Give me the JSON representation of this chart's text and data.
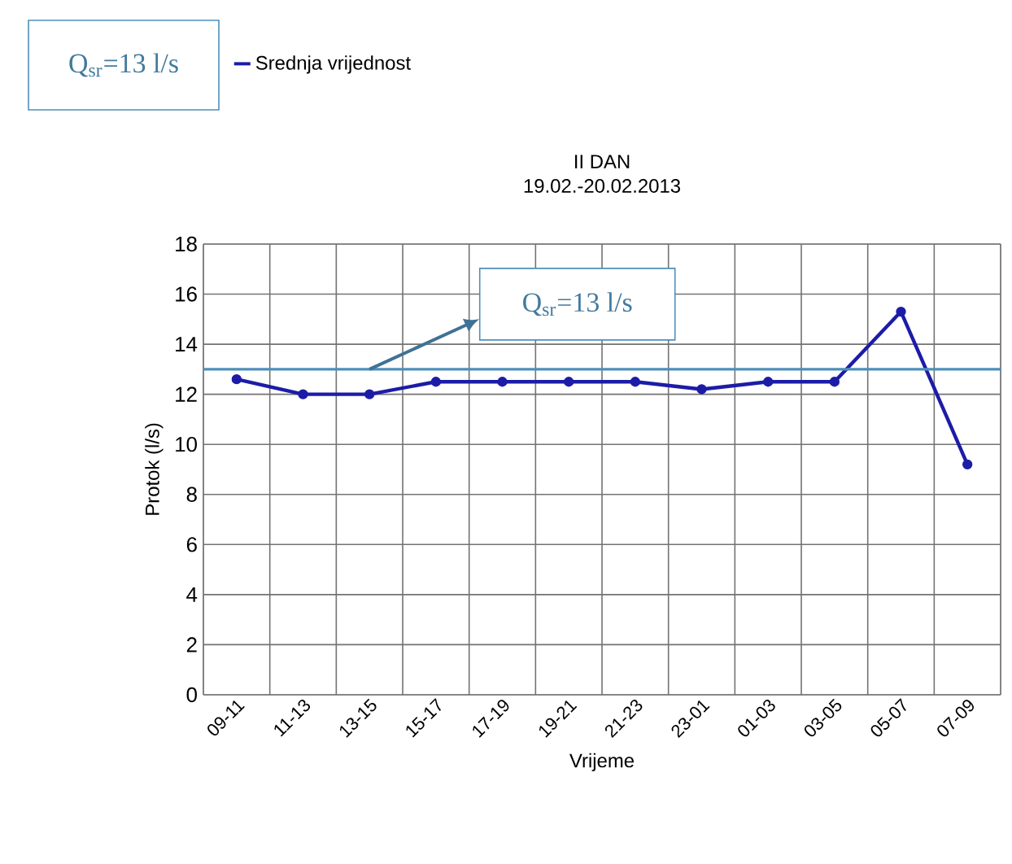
{
  "chart_data": {
    "type": "line",
    "title": "II DAN",
    "subtitle": "19.02.-20.02.2013",
    "xlabel": "Vrijeme",
    "ylabel": "Protok (l/s)",
    "categories": [
      "09-11",
      "11-13",
      "13-15",
      "15-17",
      "17-19",
      "19-21",
      "21-23",
      "23-01",
      "01-03",
      "03-05",
      "05-07",
      "07-09"
    ],
    "series": [
      {
        "name": "Srednja vrijednost",
        "color": "#1c1ca8",
        "values": [
          12.6,
          12.0,
          12.0,
          12.5,
          12.5,
          12.5,
          12.5,
          12.2,
          12.5,
          12.5,
          15.3,
          9.2
        ]
      }
    ],
    "ylim": [
      0,
      18
    ],
    "yticks": [
      0,
      2,
      4,
      6,
      8,
      10,
      12,
      14,
      16,
      18
    ],
    "grid": true,
    "legend": "top left",
    "marker": "circle",
    "line_style": "solid",
    "ref_lines": [
      {
        "axis": "y",
        "value": 13,
        "label": "Q$_{sr}$=13 l/s",
        "color": "#4f8fba"
      }
    ],
    "annotations": [
      "Q$_{sr}$=13 l/s"
    ]
  }
}
